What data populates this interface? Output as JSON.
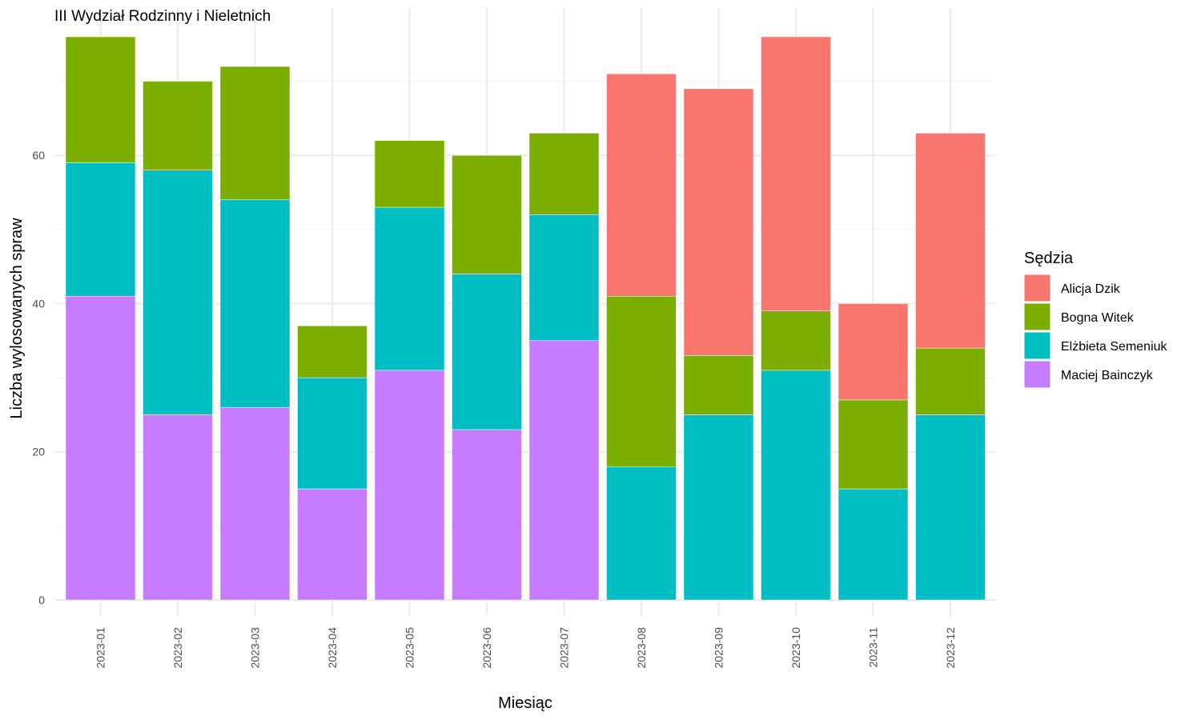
{
  "chart_data": {
    "type": "bar",
    "stacked": true,
    "title": "III Wydział Rodzinny i Nieletnich",
    "xlabel": "Miesiąc",
    "ylabel": "Liczba wylosowanych spraw",
    "ylim": [
      0,
      76
    ],
    "yticks": [
      0,
      20,
      40,
      60
    ],
    "grid": true,
    "legend": {
      "title": "Sędzia",
      "position": "right"
    },
    "categories": [
      "2023-01",
      "2023-02",
      "2023-03",
      "2023-04",
      "2023-05",
      "2023-06",
      "2023-07",
      "2023-08",
      "2023-09",
      "2023-10",
      "2023-11",
      "2023-12"
    ],
    "series": [
      {
        "name": "Maciej Bainczyk",
        "color": "#C77CFF",
        "values": [
          41,
          25,
          26,
          15,
          31,
          23,
          35,
          0,
          0,
          0,
          0,
          0
        ]
      },
      {
        "name": "Elżbieta Semeniuk",
        "color": "#00BFC4",
        "values": [
          18,
          33,
          28,
          15,
          22,
          21,
          17,
          18,
          25,
          31,
          15,
          25
        ]
      },
      {
        "name": "Bogna Witek",
        "color": "#7CAE00",
        "values": [
          17,
          12,
          18,
          7,
          9,
          16,
          11,
          23,
          8,
          8,
          12,
          9
        ]
      },
      {
        "name": "Alicja Dzik",
        "color": "#F8766D",
        "values": [
          0,
          0,
          0,
          0,
          0,
          0,
          0,
          30,
          36,
          37,
          13,
          29
        ]
      }
    ],
    "legend_order": [
      "Alicja Dzik",
      "Bogna Witek",
      "Elżbieta Semeniuk",
      "Maciej Bainczyk"
    ]
  }
}
